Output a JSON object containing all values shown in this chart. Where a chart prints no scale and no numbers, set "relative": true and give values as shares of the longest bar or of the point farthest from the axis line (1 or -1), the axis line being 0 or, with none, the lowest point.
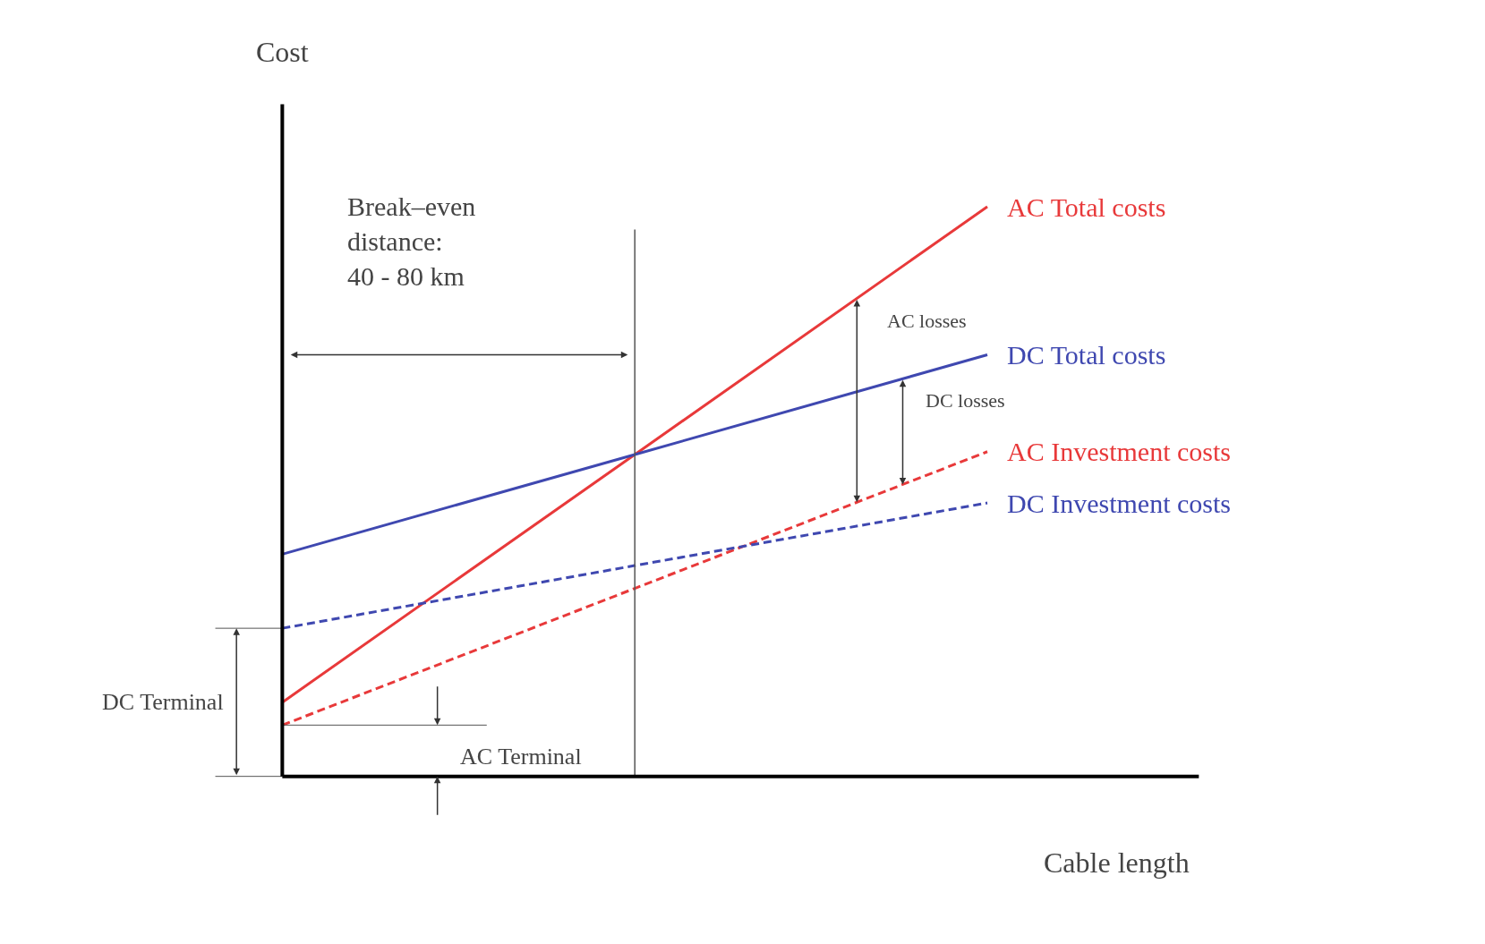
{
  "chart_data": {
    "type": "line",
    "relative": true,
    "xlabel": "Cable length",
    "ylabel": "Cost",
    "categories": [
      null,
      null,
      null
    ],
    "series": [
      {
        "name": "AC Total costs",
        "color": "#e8393a",
        "values": [
          0.13,
          0.565,
          1.0
        ],
        "line_style": "solid"
      },
      {
        "name": "DC Total costs",
        "color": "#3f48b0",
        "values": [
          0.39,
          0.565,
          0.74
        ],
        "line_style": "solid"
      },
      {
        "name": "AC Investment costs",
        "color": "#e8393a",
        "values": [
          0.09,
          0.33,
          0.57
        ],
        "line_style": "dashed"
      },
      {
        "name": "DC Investment costs",
        "color": "#3f48b0",
        "values": [
          0.26,
          0.37,
          0.48
        ],
        "line_style": "dashed"
      }
    ],
    "annotations": [
      "Break–even\ndistance:\n40 - 80 km",
      "AC losses",
      "DC losses",
      "DC Terminal",
      "AC Terminal"
    ],
    "legend": false,
    "marker": "none"
  }
}
